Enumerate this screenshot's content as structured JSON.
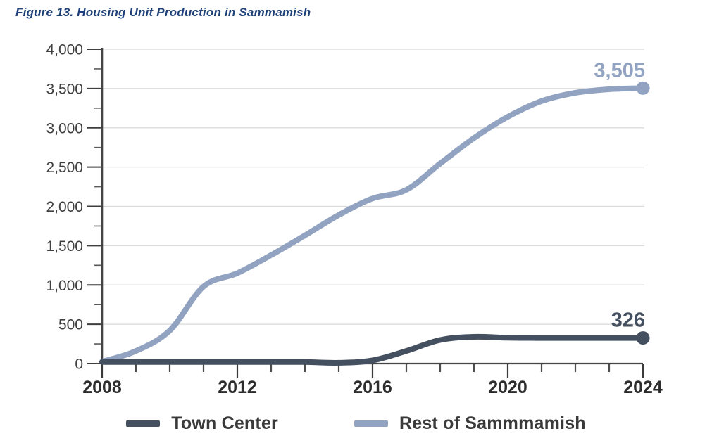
{
  "figure": {
    "title": "Figure 13. Housing Unit Production in Sammamish"
  },
  "chart_data": {
    "type": "line",
    "title": "Figure 13. Housing Unit Production in Sammamish",
    "x": [
      2008,
      2009,
      2010,
      2011,
      2012,
      2013,
      2014,
      2015,
      2016,
      2017,
      2018,
      2019,
      2020,
      2021,
      2022,
      2023,
      2024
    ],
    "series": [
      {
        "name": "Town Center",
        "color": "#44505f",
        "values": [
          20,
          20,
          20,
          20,
          20,
          20,
          20,
          10,
          40,
          160,
          300,
          340,
          328,
          326,
          326,
          326,
          326
        ],
        "end_label": "326"
      },
      {
        "name": "Rest of Sammmamish",
        "color": "#91a3c0",
        "values": [
          25,
          160,
          420,
          980,
          1150,
          1380,
          1630,
          1890,
          2100,
          2210,
          2545,
          2870,
          3140,
          3340,
          3445,
          3490,
          3505
        ],
        "end_label": "3,505"
      }
    ],
    "xlabel": "",
    "ylabel": "",
    "ylim": [
      0,
      4000
    ],
    "y_major_step": 500,
    "y_minor_step": 250,
    "y_tick_labels": [
      "0",
      "500",
      "1,000",
      "1,500",
      "2,000",
      "2,500",
      "3,000",
      "3,500",
      "4,000"
    ],
    "x_tick_labels": [
      "2008",
      "2012",
      "2016",
      "2020",
      "2024"
    ],
    "x_labeled_years": [
      2008,
      2012,
      2016,
      2020,
      2024
    ],
    "grid": "horizontal major gridlines, light gray",
    "legend_position": "bottom"
  },
  "legend": {
    "items": [
      {
        "label": "Town Center",
        "color": "#44505f"
      },
      {
        "label": "Rest of Sammmamish",
        "color": "#91a3c0"
      }
    ]
  },
  "colors": {
    "title": "#1e4179",
    "axis": "#454545",
    "gridline": "#d9d9d9",
    "y_tick_label": "#3f3f3f",
    "x_tick_label": "#2d2d2d",
    "legend_text": "#3a3a3a",
    "town_center": "#44505f",
    "rest_of_sammamish": "#91a3c0",
    "background": "#ffffff"
  }
}
